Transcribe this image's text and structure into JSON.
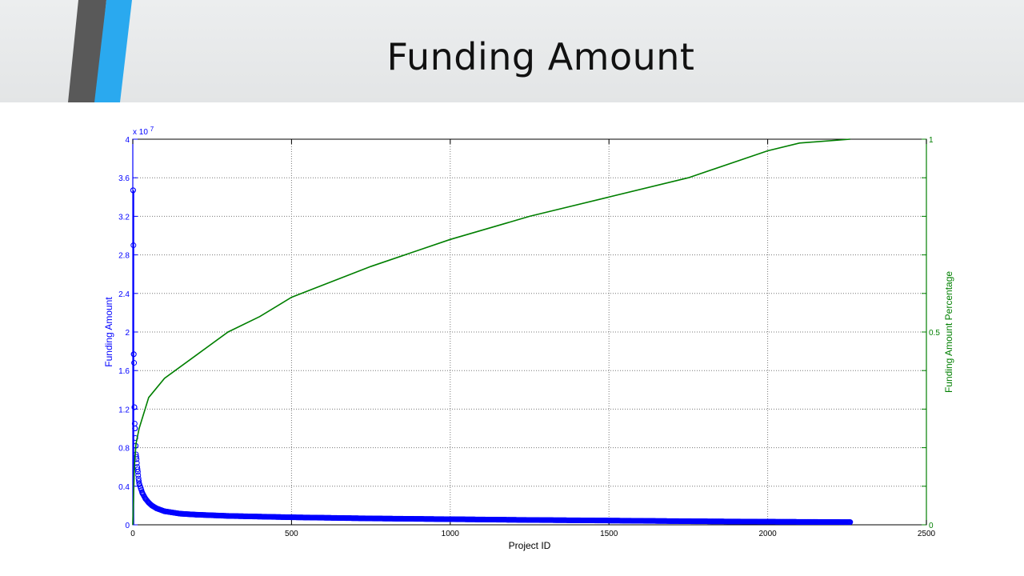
{
  "slide": {
    "title": "Funding Amount",
    "accent_colors": [
      "#595959",
      "#2aa9ef"
    ]
  },
  "chart_data": {
    "type": "scatter",
    "xlabel": "Project ID",
    "ylabel_left": "Funding Amount",
    "ylabel_right": "Funding Amount Percentage",
    "left_axis_exponent_prefix": "x 10",
    "left_axis_exponent": "7",
    "xlim": [
      0,
      2500
    ],
    "ylim_left": [
      0,
      4
    ],
    "ylim_left_multiplier": 10000000,
    "ylim_right": [
      0,
      1
    ],
    "x_ticks": [
      "0",
      "500",
      "1000",
      "1500",
      "2000",
      "2500"
    ],
    "y_left_ticks": [
      "0",
      "0.4",
      "0.8",
      "1.2",
      "1.6",
      "2",
      "2.4",
      "2.8",
      "3.2",
      "3.6",
      "4"
    ],
    "y_right_ticks": [
      "0",
      "0.5",
      "1"
    ],
    "grid": true,
    "left_color": "#0000ff",
    "right_color": "#007f00",
    "series": [
      {
        "axis": "left",
        "style": "circle-markers",
        "sorted_descending": true,
        "x_range": [
          1,
          2260
        ],
        "points": [
          [
            1,
            3.47
          ],
          [
            2,
            2.9
          ],
          [
            3,
            1.77
          ],
          [
            4,
            1.68
          ],
          [
            5,
            1.22
          ],
          [
            6,
            1.05
          ],
          [
            7,
            1.0
          ],
          [
            8,
            0.9
          ],
          [
            9,
            0.82
          ],
          [
            10,
            0.73
          ],
          [
            12,
            0.68
          ],
          [
            14,
            0.6
          ],
          [
            16,
            0.55
          ],
          [
            18,
            0.48
          ],
          [
            20,
            0.43
          ],
          [
            25,
            0.38
          ],
          [
            30,
            0.33
          ],
          [
            40,
            0.27
          ],
          [
            50,
            0.23
          ],
          [
            60,
            0.2
          ],
          [
            75,
            0.17
          ],
          [
            100,
            0.14
          ],
          [
            150,
            0.115
          ],
          [
            200,
            0.105
          ],
          [
            300,
            0.092
          ],
          [
            500,
            0.078
          ],
          [
            750,
            0.066
          ],
          [
            1000,
            0.058
          ],
          [
            1250,
            0.05
          ],
          [
            1500,
            0.044
          ],
          [
            1750,
            0.037
          ],
          [
            2000,
            0.032
          ],
          [
            2260,
            0.028
          ]
        ]
      },
      {
        "axis": "right",
        "style": "line",
        "points": [
          [
            0,
            0.0
          ],
          [
            5,
            0.15
          ],
          [
            10,
            0.21
          ],
          [
            20,
            0.25
          ],
          [
            50,
            0.33
          ],
          [
            100,
            0.38
          ],
          [
            200,
            0.44
          ],
          [
            300,
            0.5
          ],
          [
            400,
            0.54
          ],
          [
            500,
            0.59
          ],
          [
            750,
            0.67
          ],
          [
            1000,
            0.74
          ],
          [
            1250,
            0.8
          ],
          [
            1500,
            0.85
          ],
          [
            1750,
            0.9
          ],
          [
            2000,
            0.97
          ],
          [
            2100,
            0.99
          ],
          [
            2260,
            1.0
          ]
        ]
      }
    ]
  }
}
